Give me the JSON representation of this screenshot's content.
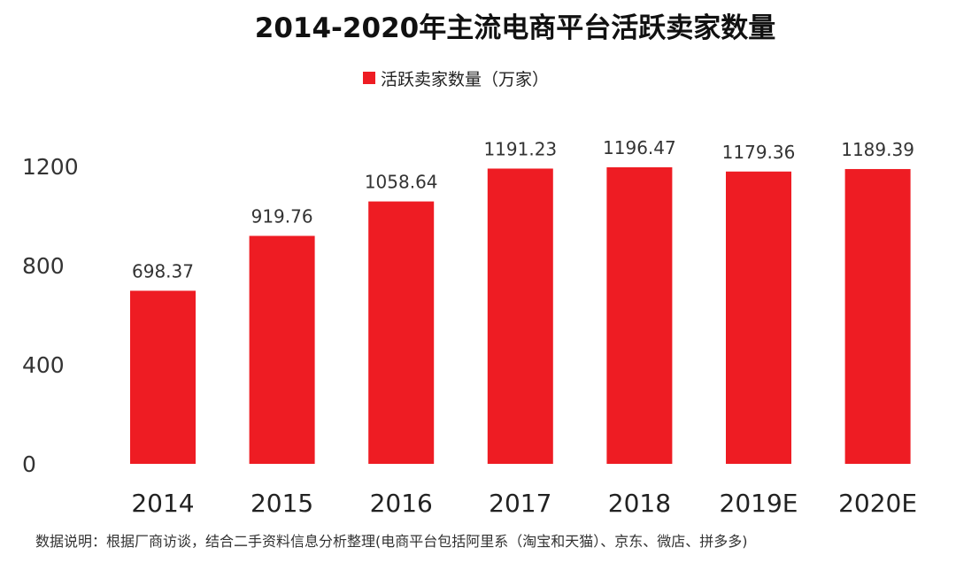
{
  "chart_data": {
    "type": "bar",
    "title": "2014-2020年主流电商平台活跃卖家数量",
    "legend": {
      "entries": [
        "活跃卖家数量（万家）"
      ],
      "placement": "top-center"
    },
    "categories": [
      "2014",
      "2015",
      "2016",
      "2017",
      "2018",
      "2019E",
      "2020E"
    ],
    "series": [
      {
        "name": "活跃卖家数量（万家）",
        "values": [
          698.37,
          919.76,
          1058.64,
          1191.23,
          1196.47,
          1179.36,
          1189.39
        ],
        "data_labels": [
          "698.37",
          "919.76",
          "1058.64",
          "1191.23",
          "1196.47",
          "1179.36",
          "1189.39"
        ]
      }
    ],
    "yticks": [
      "0",
      "400",
      "800",
      "1200"
    ],
    "ylim": [
      0,
      1200
    ],
    "grid": false,
    "bar_color": "#ee1c23",
    "xlabel": "",
    "ylabel": ""
  },
  "footnote": "数据说明：根据厂商访谈，结合二手资料信息分析整理(电商平台包括阿里系（淘宝和天猫）、京东、微店、拼多多)"
}
